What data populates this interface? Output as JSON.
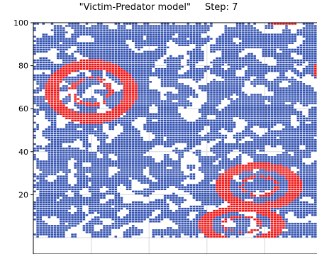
{
  "chart_data": {
    "type": "scatter",
    "title": "\"Victim-Predator model\"",
    "step_label": "Step: 7",
    "xlabel": "",
    "ylabel": "",
    "xlim": [
      0,
      100
    ],
    "ylim": [
      0,
      100
    ],
    "y_ticks": [
      20,
      40,
      60,
      80,
      100
    ],
    "y_tick_labels": [
      "20",
      "40",
      "60",
      "80",
      "100"
    ],
    "grid": true,
    "legend": "none",
    "colors": {
      "victim": "#3050b0",
      "predator": "#f01010",
      "grid": "#d8d8d8",
      "background": "#ffffff"
    },
    "series": [
      {
        "label_shown": false,
        "role": "victim",
        "marker": "square",
        "coverage": 0.55
      },
      {
        "label_shown": false,
        "role": "predator",
        "marker": "square",
        "clusters": [
          {
            "cx": 20,
            "cy": 68,
            "rx": 16,
            "ry": 15
          },
          {
            "cx": 78,
            "cy": 24,
            "rx": 15,
            "ry": 11
          },
          {
            "cx": 72,
            "cy": 6,
            "rx": 15,
            "ry": 9
          },
          {
            "cx": 101,
            "cy": 78,
            "rx": 4,
            "ry": 6
          }
        ],
        "top_edge_cells": {
          "x_from": 82,
          "x_to": 91,
          "y": 100
        }
      }
    ]
  }
}
